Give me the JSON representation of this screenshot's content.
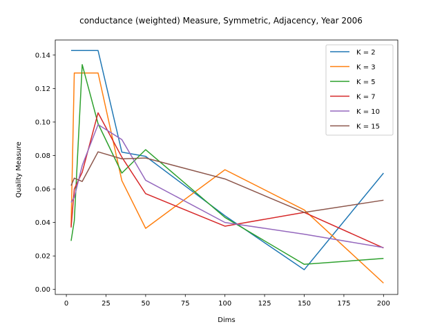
{
  "chart_data": {
    "type": "line",
    "title": "conductance (weighted) Measure, Symmetric, Adjacency, Year 2006",
    "xlabel": "Dims",
    "ylabel": "Quality Measure",
    "xlim": [
      -7,
      209
    ],
    "ylim": [
      -0.003,
      0.149
    ],
    "xticks": [
      0,
      25,
      50,
      75,
      100,
      125,
      150,
      175,
      200
    ],
    "xtick_labels": [
      "0",
      "25",
      "50",
      "75",
      "100",
      "125",
      "150",
      "175",
      "200"
    ],
    "yticks": [
      0.0,
      0.02,
      0.04,
      0.06,
      0.08,
      0.1,
      0.12,
      0.14
    ],
    "ytick_labels": [
      "0.00",
      "0.02",
      "0.04",
      "0.06",
      "0.08",
      "0.10",
      "0.12",
      "0.14"
    ],
    "grid": false,
    "legend_position": "top-right",
    "series": [
      {
        "name": "K = 2",
        "color": "#1f77b4",
        "x": [
          3,
          5,
          10,
          20,
          35,
          50,
          100,
          150,
          200
        ],
        "y": [
          0.1427,
          0.1427,
          0.1427,
          0.1427,
          0.082,
          0.0795,
          0.044,
          0.0118,
          0.0695
        ]
      },
      {
        "name": "K = 3",
        "color": "#ff7f0e",
        "x": [
          3,
          5,
          10,
          20,
          35,
          50,
          100,
          150,
          200
        ],
        "y": [
          0.038,
          0.1293,
          0.1293,
          0.1293,
          0.065,
          0.0365,
          0.0715,
          0.0475,
          0.0038
        ]
      },
      {
        "name": "K = 5",
        "color": "#2ca02c",
        "x": [
          3,
          5,
          10,
          20,
          35,
          50,
          100,
          150,
          200
        ],
        "y": [
          0.029,
          0.041,
          0.1343,
          0.099,
          0.0695,
          0.0835,
          0.043,
          0.015,
          0.0185
        ]
      },
      {
        "name": "K = 7",
        "color": "#d62728",
        "x": [
          3,
          5,
          10,
          20,
          35,
          50,
          100,
          150,
          200
        ],
        "y": [
          0.037,
          0.06,
          0.07,
          0.1055,
          0.079,
          0.0572,
          0.0378,
          0.046,
          0.0248
        ]
      },
      {
        "name": "K = 10",
        "color": "#9467bd",
        "x": [
          3,
          5,
          10,
          20,
          35,
          50,
          100,
          150,
          200
        ],
        "y": [
          0.052,
          0.055,
          0.074,
          0.0985,
          0.0895,
          0.0652,
          0.04,
          0.033,
          0.025
        ]
      },
      {
        "name": "K = 15",
        "color": "#8c564b",
        "x": [
          3,
          5,
          10,
          20,
          35,
          50,
          100,
          150,
          200
        ],
        "y": [
          0.062,
          0.0665,
          0.0645,
          0.0822,
          0.078,
          0.0785,
          0.066,
          0.046,
          0.0533
        ]
      }
    ]
  }
}
